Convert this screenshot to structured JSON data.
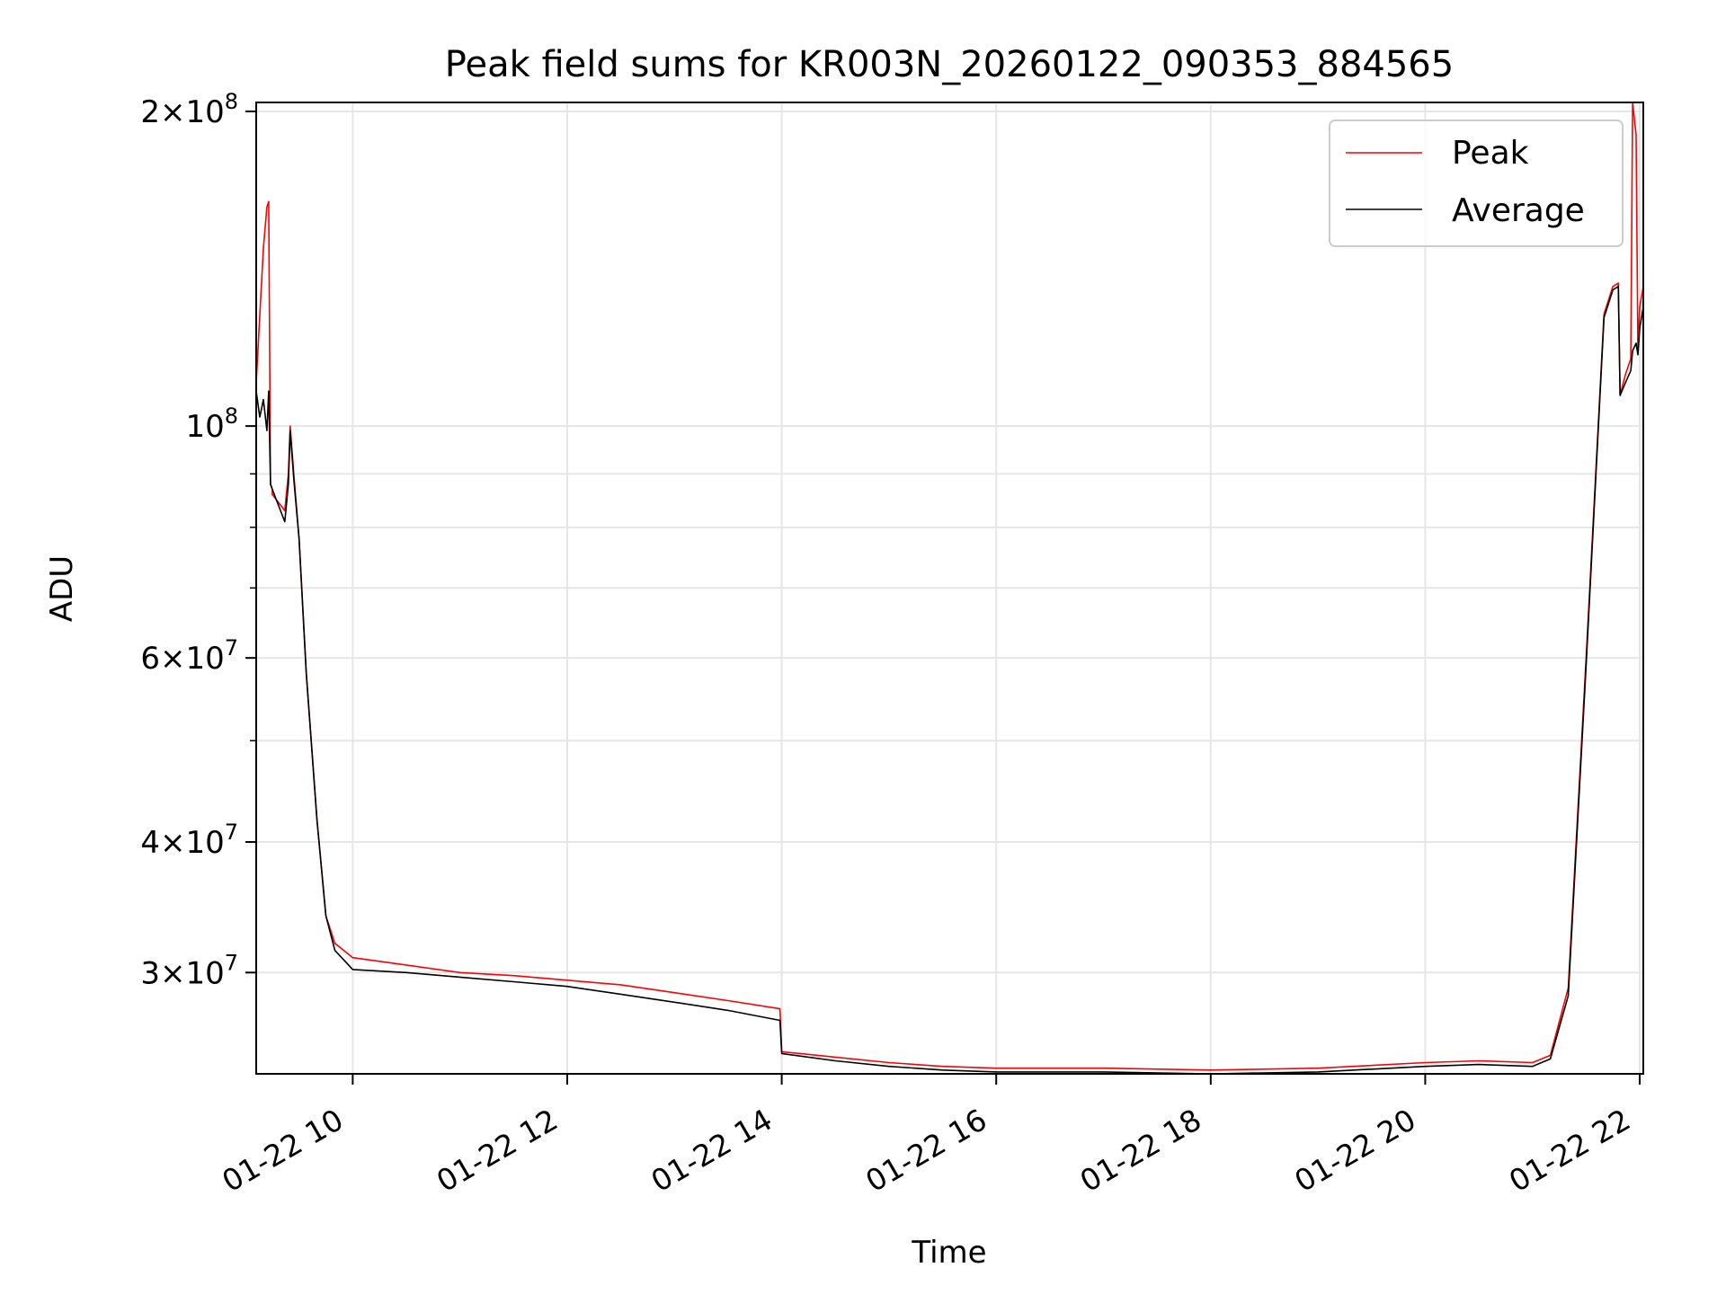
{
  "chart_data": {
    "type": "line",
    "title": "Peak field sums for KR003N_20260122_090353_884565",
    "xlabel": "Time",
    "ylabel": "ADU",
    "xscale": "time",
    "yscale": "log",
    "xlim": [
      "2026-01-22 09:06",
      "2026-01-22 22:02"
    ],
    "ylim": [
      24000000,
      204000000
    ],
    "grid": true,
    "legend_position": "top-right",
    "x_ticks": [
      {
        "value": "2026-01-22 10:00",
        "label": "01-22 10"
      },
      {
        "value": "2026-01-22 12:00",
        "label": "01-22 12"
      },
      {
        "value": "2026-01-22 14:00",
        "label": "01-22 14"
      },
      {
        "value": "2026-01-22 16:00",
        "label": "01-22 16"
      },
      {
        "value": "2026-01-22 18:00",
        "label": "01-22 18"
      },
      {
        "value": "2026-01-22 20:00",
        "label": "01-22 20"
      },
      {
        "value": "2026-01-22 22:00",
        "label": "01-22 22"
      }
    ],
    "y_ticks": [
      {
        "value": 30000000,
        "mantissa": "3",
        "exponent": "7"
      },
      {
        "value": 40000000,
        "mantissa": "4",
        "exponent": "7"
      },
      {
        "value": 60000000,
        "mantissa": "6",
        "exponent": "7"
      },
      {
        "value": 100000000,
        "mantissa": "",
        "exponent": "8"
      },
      {
        "value": 200000000,
        "mantissa": "2",
        "exponent": "8"
      }
    ],
    "y_minor_ticks": [
      50000000,
      70000000,
      80000000,
      90000000
    ],
    "series": [
      {
        "name": "Peak",
        "color": "#ff0000",
        "x": [
          "2026-01-22 09:06",
          "2026-01-22 09:10",
          "2026-01-22 09:12",
          "2026-01-22 09:13",
          "2026-01-22 09:14",
          "2026-01-22 09:15",
          "2026-01-22 09:15",
          "2026-01-22 09:22",
          "2026-01-22 09:24",
          "2026-01-22 09:25",
          "2026-01-22 09:27",
          "2026-01-22 09:30",
          "2026-01-22 09:34",
          "2026-01-22 09:40",
          "2026-01-22 09:45",
          "2026-01-22 09:50",
          "2026-01-22 10:00",
          "2026-01-22 10:30",
          "2026-01-22 11:00",
          "2026-01-22 11:30",
          "2026-01-22 12:00",
          "2026-01-22 12:30",
          "2026-01-22 13:00",
          "2026-01-22 13:30",
          "2026-01-22 13:59",
          "2026-01-22 14:00",
          "2026-01-22 14:30",
          "2026-01-22 15:00",
          "2026-01-22 15:30",
          "2026-01-22 16:00",
          "2026-01-22 17:00",
          "2026-01-22 18:00",
          "2026-01-22 19:00",
          "2026-01-22 20:00",
          "2026-01-22 20:30",
          "2026-01-22 21:00",
          "2026-01-22 21:10",
          "2026-01-22 21:20",
          "2026-01-22 21:30",
          "2026-01-22 21:40",
          "2026-01-22 21:45",
          "2026-01-22 21:48",
          "2026-01-22 21:49",
          "2026-01-22 21:52",
          "2026-01-22 21:55",
          "2026-01-22 21:56",
          "2026-01-22 21:58",
          "2026-01-22 21:59",
          "2026-01-22 22:00",
          "2026-01-22 22:01",
          "2026-01-22 22:02"
        ],
        "y": [
          110000000,
          148000000,
          162000000,
          164000000,
          88000000,
          87000000,
          86000000,
          83000000,
          90000000,
          100000000,
          90000000,
          78000000,
          58000000,
          42000000,
          34000000,
          32000000,
          31000000,
          30500000,
          30000000,
          29800000,
          29500000,
          29200000,
          28700000,
          28200000,
          27700000,
          25200000,
          24900000,
          24600000,
          24400000,
          24300000,
          24300000,
          24200000,
          24300000,
          24600000,
          24700000,
          24600000,
          25000000,
          29000000,
          60000000,
          128000000,
          136000000,
          137000000,
          107000000,
          112000000,
          116000000,
          204000000,
          190000000,
          118000000,
          130000000,
          133000000,
          136000000
        ]
      },
      {
        "name": "Average",
        "color": "#000000",
        "x": [
          "2026-01-22 09:06",
          "2026-01-22 09:08",
          "2026-01-22 09:10",
          "2026-01-22 09:12",
          "2026-01-22 09:13",
          "2026-01-22 09:14",
          "2026-01-22 09:15",
          "2026-01-22 09:22",
          "2026-01-22 09:24",
          "2026-01-22 09:25",
          "2026-01-22 09:27",
          "2026-01-22 09:30",
          "2026-01-22 09:34",
          "2026-01-22 09:40",
          "2026-01-22 09:45",
          "2026-01-22 09:50",
          "2026-01-22 10:00",
          "2026-01-22 10:30",
          "2026-01-22 11:00",
          "2026-01-22 11:30",
          "2026-01-22 12:00",
          "2026-01-22 12:30",
          "2026-01-22 13:00",
          "2026-01-22 13:30",
          "2026-01-22 13:59",
          "2026-01-22 14:00",
          "2026-01-22 14:30",
          "2026-01-22 15:00",
          "2026-01-22 15:30",
          "2026-01-22 16:00",
          "2026-01-22 17:00",
          "2026-01-22 18:00",
          "2026-01-22 19:00",
          "2026-01-22 20:00",
          "2026-01-22 20:30",
          "2026-01-22 21:00",
          "2026-01-22 21:10",
          "2026-01-22 21:20",
          "2026-01-22 21:30",
          "2026-01-22 21:40",
          "2026-01-22 21:45",
          "2026-01-22 21:48",
          "2026-01-22 21:49",
          "2026-01-22 21:52",
          "2026-01-22 21:55",
          "2026-01-22 21:56",
          "2026-01-22 21:58",
          "2026-01-22 21:59",
          "2026-01-22 22:00",
          "2026-01-22 22:01",
          "2026-01-22 22:02"
        ],
        "y": [
          108000000,
          102000000,
          106000000,
          99000000,
          108000000,
          88000000,
          87000000,
          81000000,
          88000000,
          99000000,
          89000000,
          78000000,
          58000000,
          42000000,
          34000000,
          31500000,
          30200000,
          30000000,
          29700000,
          29400000,
          29100000,
          28600000,
          28100000,
          27600000,
          27000000,
          25100000,
          24700000,
          24400000,
          24200000,
          24100000,
          24100000,
          24000000,
          24100000,
          24400000,
          24500000,
          24400000,
          24800000,
          28500000,
          59000000,
          127000000,
          135000000,
          136000000,
          107000000,
          110000000,
          113000000,
          118000000,
          120000000,
          117000000,
          124000000,
          127000000,
          130000000
        ]
      }
    ]
  }
}
